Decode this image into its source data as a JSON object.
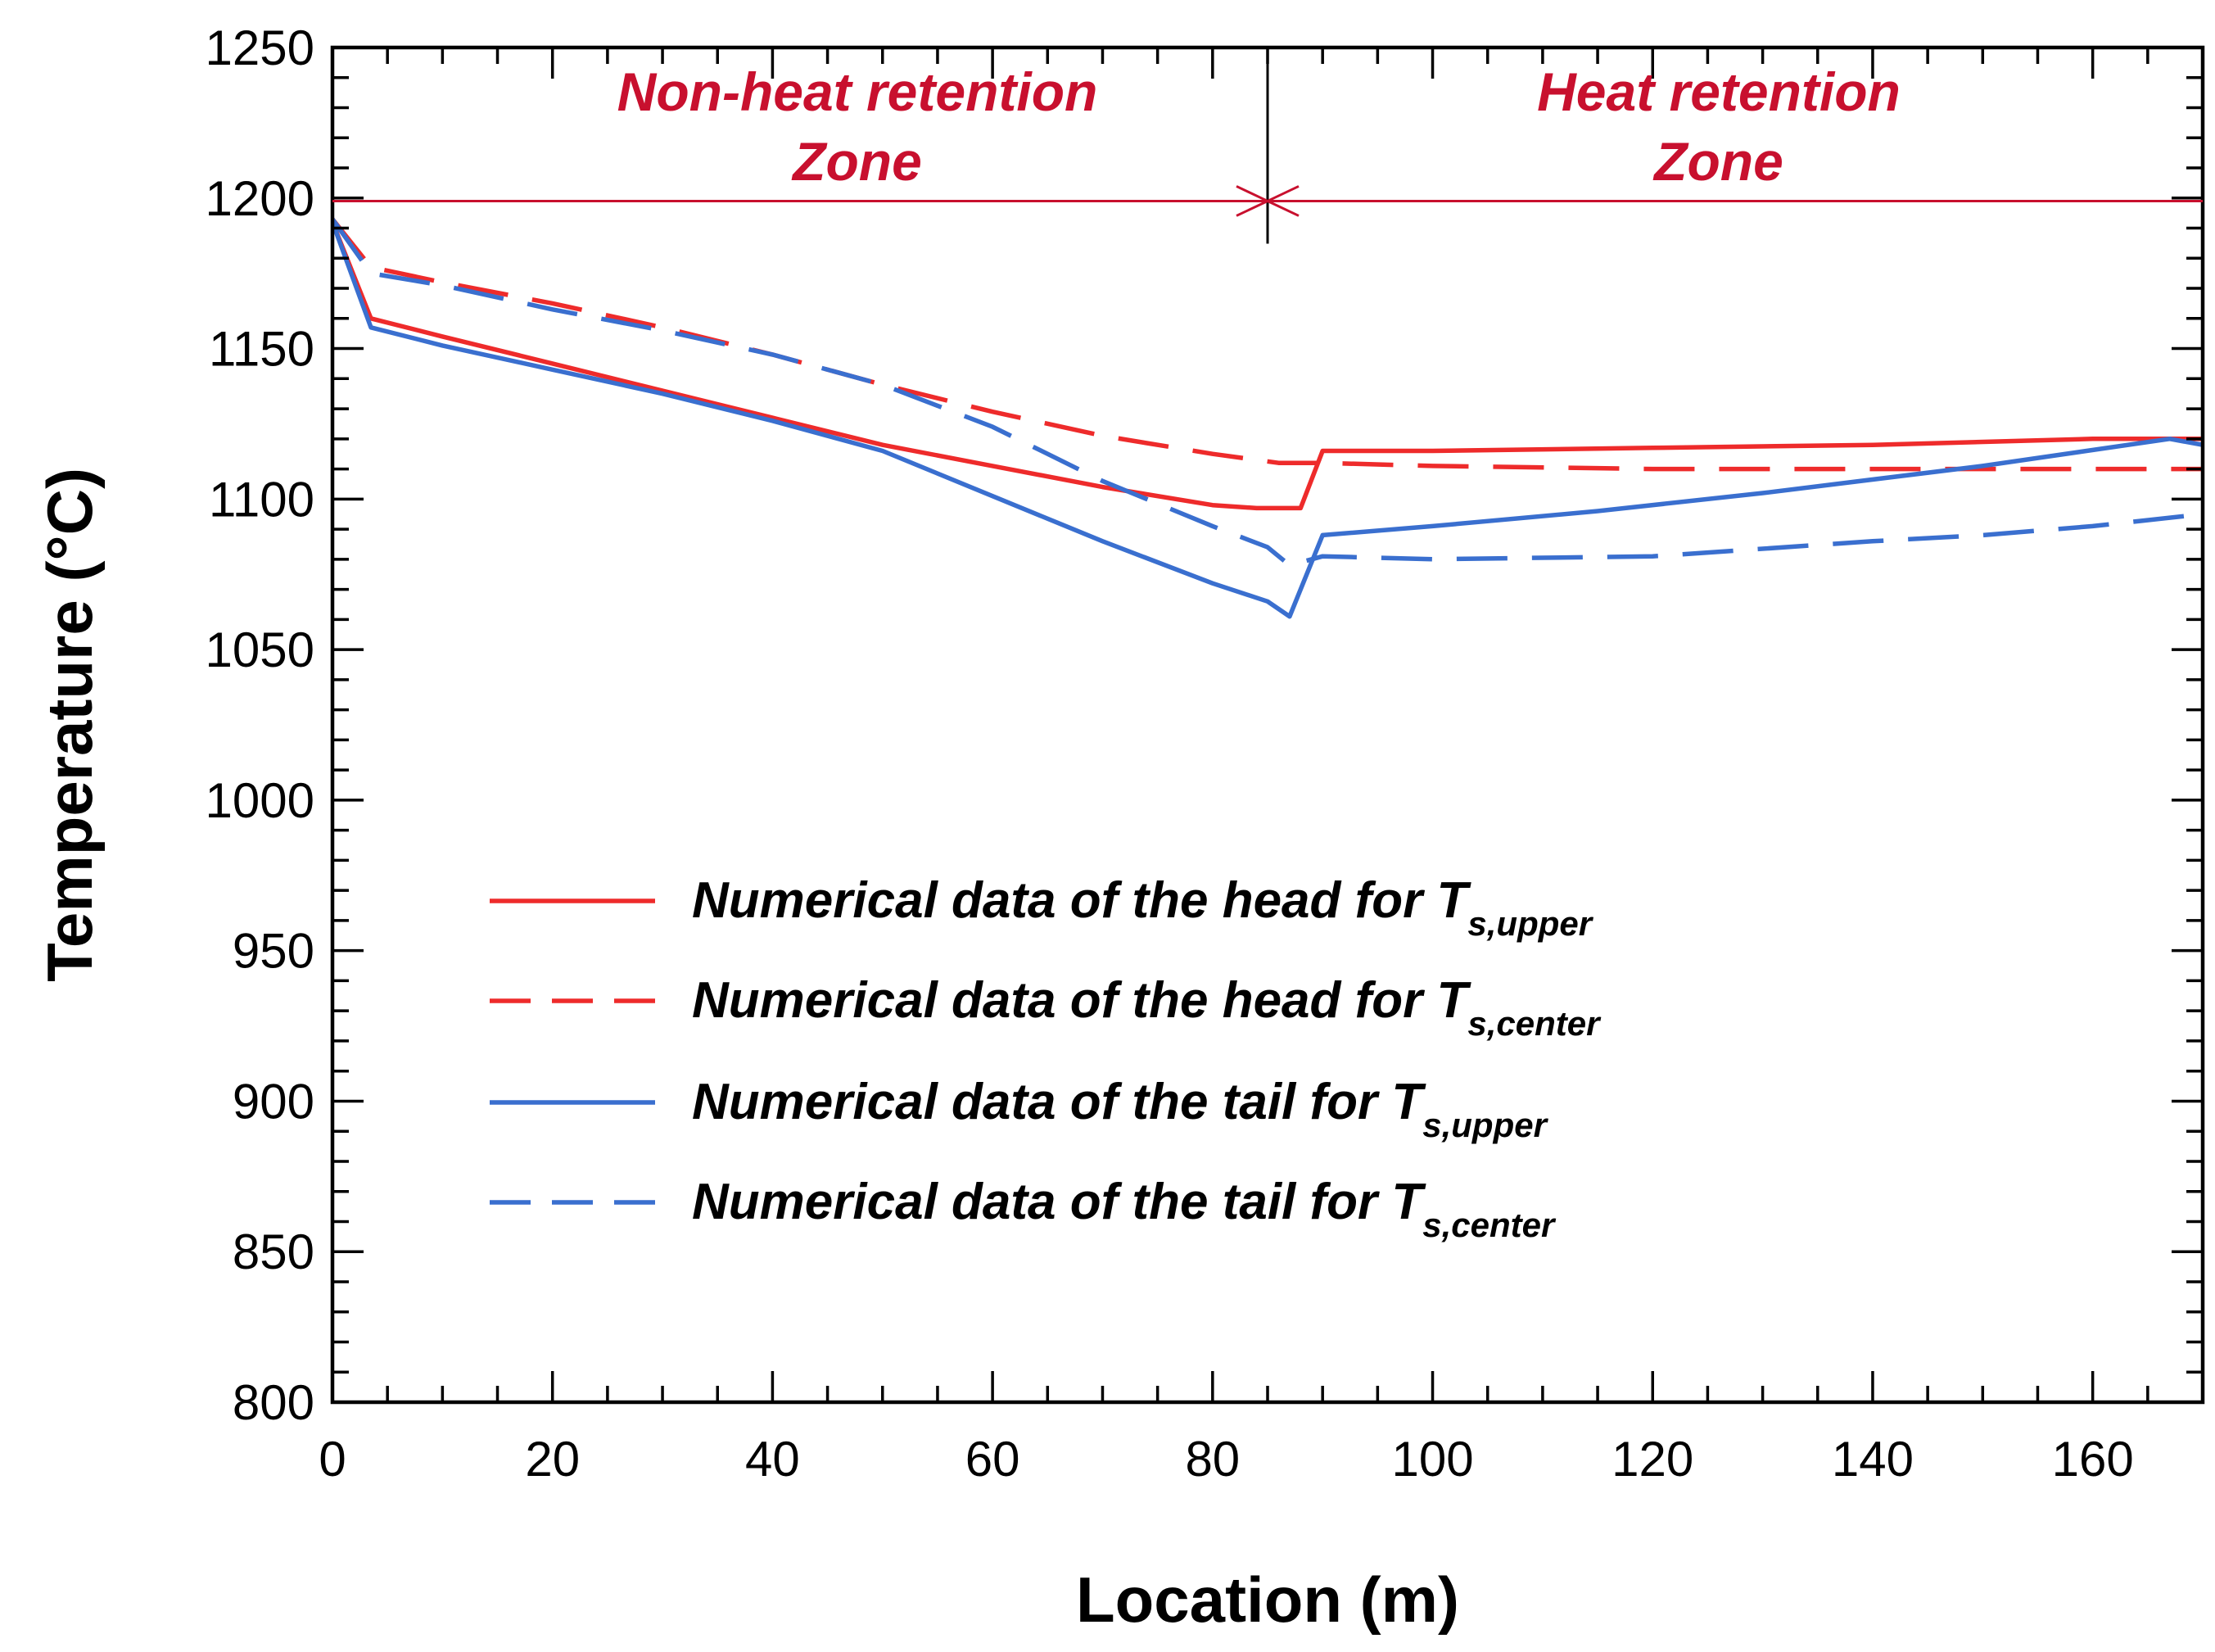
{
  "chart_data": {
    "type": "line",
    "xlabel": "Location (m)",
    "ylabel": "Temperature (°C)",
    "xlim": [
      0,
      170
    ],
    "ylim": [
      800,
      1250
    ],
    "x_ticks": [
      0,
      20,
      40,
      60,
      80,
      100,
      120,
      140,
      160
    ],
    "y_ticks": [
      800,
      850,
      900,
      950,
      1000,
      1050,
      1100,
      1150,
      1200,
      1250
    ],
    "grid": false,
    "legend_position": "center",
    "zones": {
      "divider_x": 85,
      "marker_y": 1199,
      "left": {
        "line1": "Non-heat retention",
        "line2": "Zone"
      },
      "right": {
        "line1": "Heat retention",
        "line2": "Zone"
      }
    },
    "series": [
      {
        "name": "Numerical data of the head for T",
        "subscript": "s,upper",
        "color": "#ee2b2b",
        "dash": "solid",
        "x": [
          0,
          3.5,
          10,
          20,
          30,
          40,
          50,
          60,
          70,
          80,
          84,
          88,
          90,
          100,
          120,
          140,
          160,
          170
        ],
        "y": [
          1192,
          1160,
          1154,
          1145,
          1136,
          1127,
          1118,
          1111,
          1104,
          1098,
          1097,
          1097,
          1116,
          1116,
          1117,
          1118,
          1120,
          1120
        ]
      },
      {
        "name": "Numerical data of the head for T",
        "subscript": "s,center",
        "color": "#ee2b2b",
        "dash": "dashed",
        "x": [
          0,
          3.5,
          10,
          20,
          30,
          40,
          50,
          60,
          70,
          80,
          86,
          88,
          90,
          100,
          120,
          140,
          160,
          170
        ],
        "y": [
          1193,
          1177,
          1172,
          1165,
          1157,
          1148,
          1138,
          1129,
          1121,
          1115,
          1112,
          1112,
          1112,
          1111,
          1110,
          1110,
          1110,
          1110
        ]
      },
      {
        "name": "Numerical data of the tail for T",
        "subscript": "s,upper",
        "color": "#3a6fcf",
        "dash": "solid",
        "x": [
          0,
          3.5,
          10,
          20,
          30,
          40,
          50,
          60,
          70,
          80,
          85,
          87,
          90,
          100,
          115,
          130,
          150,
          167,
          170
        ],
        "y": [
          1192,
          1157,
          1151,
          1143,
          1135,
          1126,
          1116,
          1101,
          1086,
          1072,
          1066,
          1061,
          1088,
          1091,
          1096,
          1102,
          1111,
          1120,
          1118
        ]
      },
      {
        "name": "Numerical data of the tail for T",
        "subscript": "s,center",
        "color": "#3a6fcf",
        "dash": "dashed",
        "x": [
          0,
          3.5,
          10,
          20,
          30,
          40,
          50,
          60,
          70,
          80,
          85,
          87,
          90,
          100,
          120,
          140,
          150,
          160,
          170
        ],
        "y": [
          1193,
          1175,
          1171,
          1163,
          1156,
          1148,
          1138,
          1124,
          1106,
          1091,
          1084,
          1078,
          1081,
          1080,
          1081,
          1086,
          1088,
          1091,
          1095
        ]
      }
    ]
  }
}
